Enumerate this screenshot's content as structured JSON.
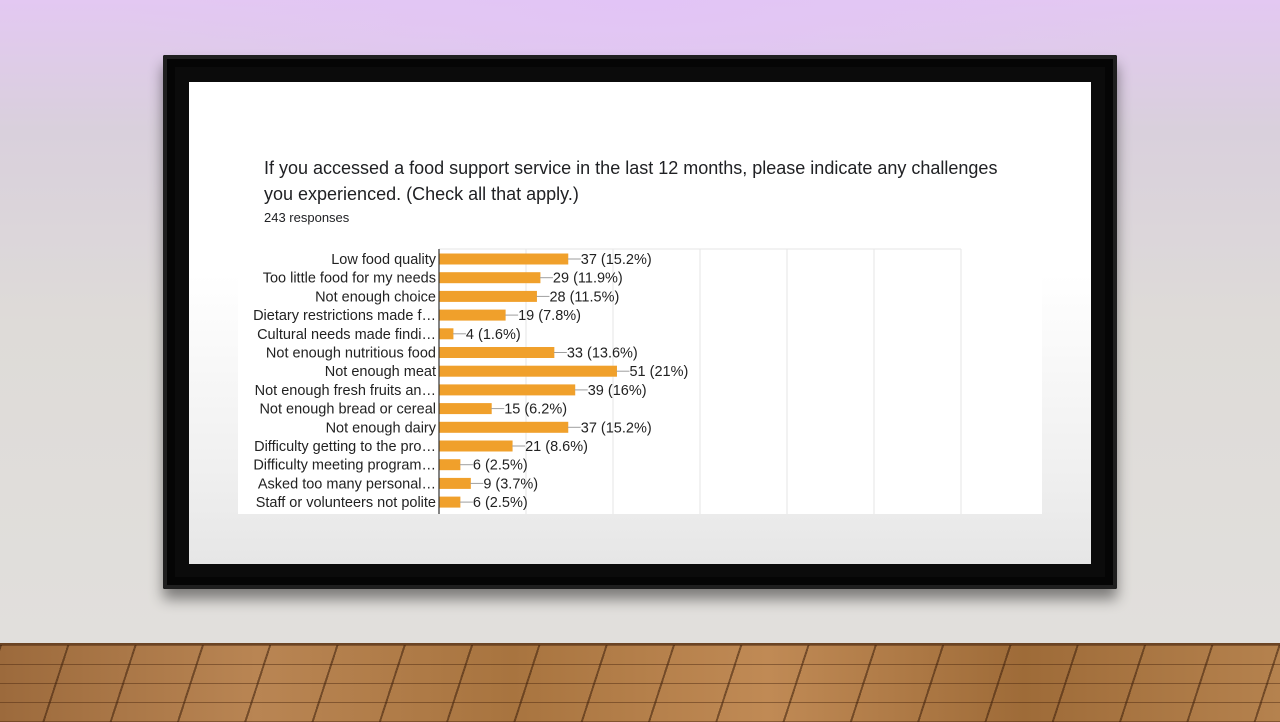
{
  "question": {
    "title": "If you accessed a food support service in the last 12 months, please indicate any challenges you experienced.  (Check all that apply.)",
    "responses": "243 responses"
  },
  "colors": {
    "bar": "#f0a02b",
    "grid": "#e6e6e6",
    "axis": "#333333"
  },
  "chart_data": {
    "type": "bar",
    "orientation": "horizontal",
    "categories": [
      "Low food quality",
      "Too little food for my needs",
      "Not enough choice",
      "Dietary restrictions made f…",
      "Cultural needs made findi…",
      "Not enough nutritious food",
      "Not enough meat",
      "Not enough fresh fruits an…",
      "Not enough bread or cereal",
      "Not enough dairy",
      "Difficulty getting to the pro…",
      "Difficulty meeting program…",
      "Asked too many personal…",
      "Staff or volunteers not polite"
    ],
    "values": [
      37,
      29,
      28,
      19,
      4,
      33,
      51,
      39,
      15,
      37,
      21,
      6,
      9,
      6
    ],
    "labels": [
      "37 (15.2%)",
      "29 (11.9%)",
      "28 (11.5%)",
      "19 (7.8%)",
      "4 (1.6%)",
      "33 (13.6%)",
      "51 (21%)",
      "39 (16%)",
      "15 (6.2%)",
      "37 (15.2%)",
      "21 (8.6%)",
      "6 (2.5%)",
      "9 (3.7%)",
      "6 (2.5%)"
    ],
    "xlim": [
      0,
      150
    ],
    "grid": true,
    "legend": "none"
  }
}
